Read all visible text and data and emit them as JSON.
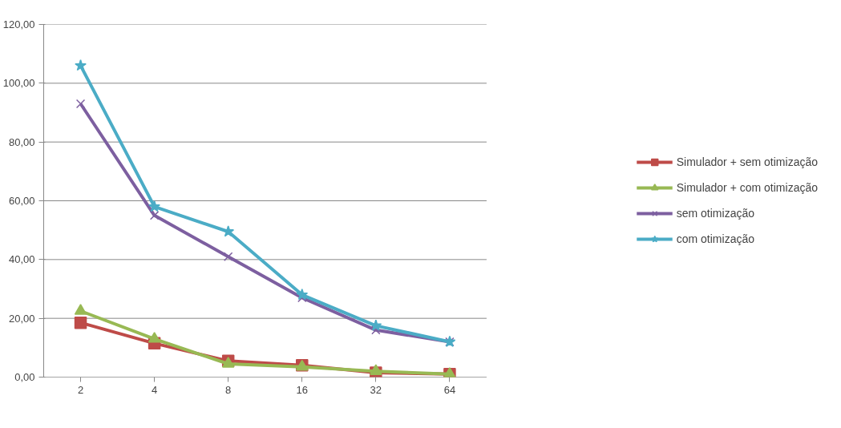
{
  "chart_data": {
    "type": "line",
    "categories": [
      "2",
      "4",
      "8",
      "16",
      "32",
      "64"
    ],
    "series": [
      {
        "name": "Simulador + sem otimização",
        "color": "#be4b48",
        "marker": "square",
        "values": [
          18.5,
          11.5,
          5.5,
          4,
          1.5,
          1
        ]
      },
      {
        "name": "Simulador + com otimização",
        "color": "#98b954",
        "marker": "triangle",
        "values": [
          22.5,
          13,
          4.5,
          3.5,
          2,
          1
        ]
      },
      {
        "name": "sem otimização",
        "color": "#7d5fa0",
        "marker": "cross",
        "values": [
          93,
          55,
          41,
          27,
          16,
          12
        ]
      },
      {
        "name": "com otimização",
        "color": "#4bacc6",
        "marker": "star",
        "values": [
          106,
          58,
          49.5,
          28,
          17.5,
          12
        ]
      }
    ],
    "ylim": [
      0,
      120
    ],
    "yticks": [
      {
        "value": 0,
        "label": "0,00"
      },
      {
        "value": 20,
        "label": "20,00"
      },
      {
        "value": 40,
        "label": "40,00"
      },
      {
        "value": 60,
        "label": "60,00"
      },
      {
        "value": 80,
        "label": "80,00"
      },
      {
        "value": 100,
        "label": "100,00"
      },
      {
        "value": 120,
        "label": "120,00"
      }
    ],
    "grid": "y",
    "legend": "right"
  }
}
